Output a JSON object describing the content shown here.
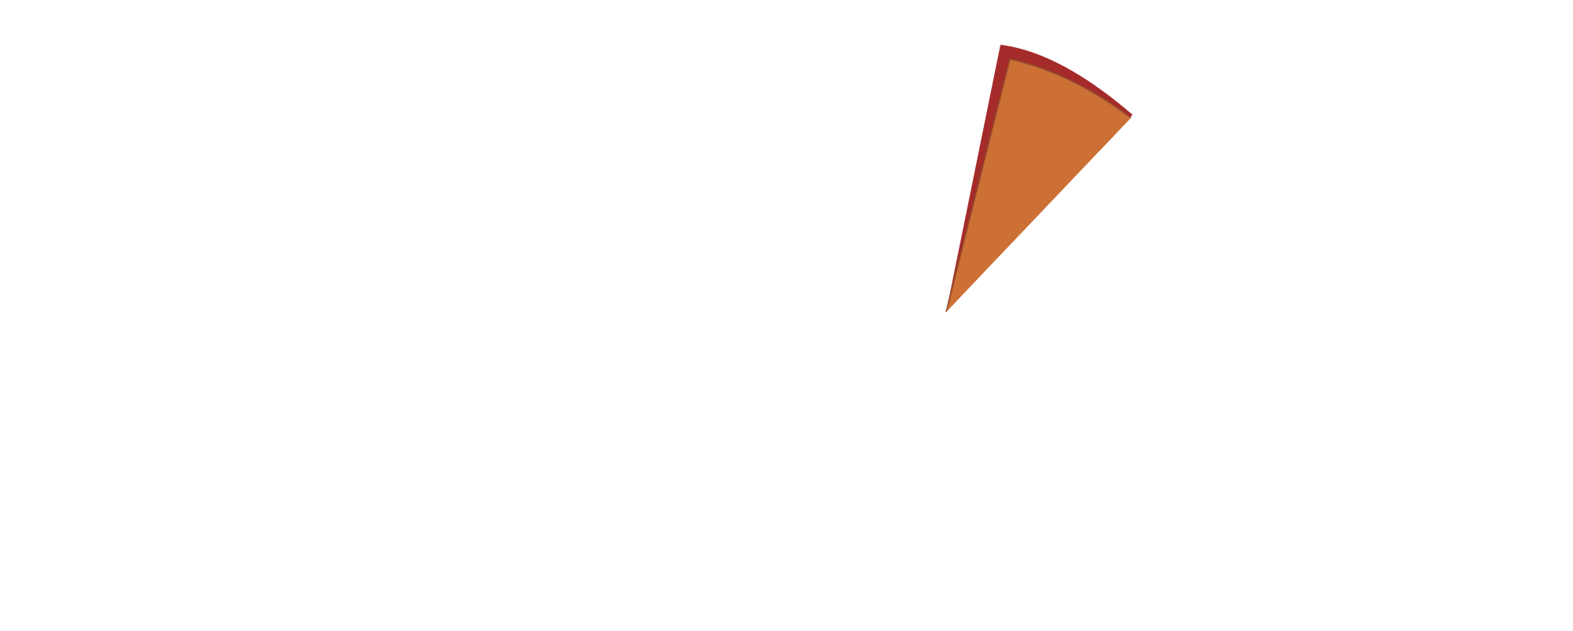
{
  "scene": {
    "background_color": "#ffffff",
    "wedge": {
      "outer_color": "#A52A2A",
      "inner_color": "#CC7036",
      "edge_color": "#8B4A2A"
    }
  }
}
